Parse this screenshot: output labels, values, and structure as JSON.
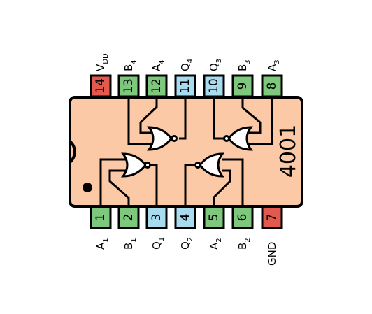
{
  "chip": {
    "part_number": "4001",
    "body_color": "#fbc9a5",
    "outline_color": "#000000"
  },
  "pin_colors": {
    "input": "#7dc87d",
    "output": "#a9dbef",
    "power": "#e15a4d"
  },
  "pins": [
    {
      "num": "1",
      "label": "A",
      "sub": "1",
      "type": "input"
    },
    {
      "num": "2",
      "label": "B",
      "sub": "1",
      "type": "input"
    },
    {
      "num": "3",
      "label": "Q",
      "sub": "1",
      "type": "output"
    },
    {
      "num": "4",
      "label": "Q",
      "sub": "2",
      "type": "output"
    },
    {
      "num": "5",
      "label": "A",
      "sub": "2",
      "type": "input"
    },
    {
      "num": "6",
      "label": "B",
      "sub": "2",
      "type": "input"
    },
    {
      "num": "7",
      "label": "GND",
      "sub": "",
      "type": "power"
    },
    {
      "num": "8",
      "label": "A",
      "sub": "3",
      "type": "input"
    },
    {
      "num": "9",
      "label": "B",
      "sub": "3",
      "type": "input"
    },
    {
      "num": "10",
      "label": "Q",
      "sub": "3",
      "type": "output"
    },
    {
      "num": "11",
      "label": "Q",
      "sub": "4",
      "type": "output"
    },
    {
      "num": "12",
      "label": "A",
      "sub": "4",
      "type": "input"
    },
    {
      "num": "13",
      "label": "B",
      "sub": "4",
      "type": "input"
    },
    {
      "num": "14",
      "label": "V",
      "sub": "DD",
      "type": "power"
    }
  ]
}
